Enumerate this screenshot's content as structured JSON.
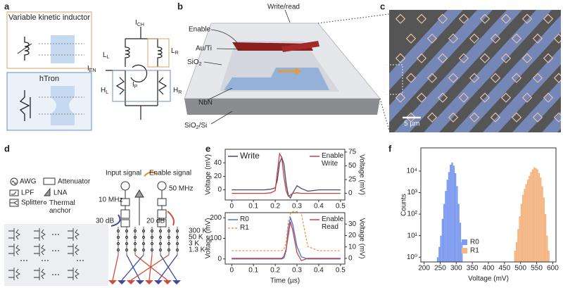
{
  "panel_labels": [
    "a",
    "b",
    "c",
    "d",
    "e",
    "f"
  ],
  "panel_a": {
    "boxes": [
      "Variable kinetic inductor",
      "hTron"
    ],
    "labels": [
      {
        "main": "I",
        "sub": "CH"
      },
      {
        "main": "L",
        "sub": "L"
      },
      {
        "main": "L",
        "sub": "R"
      },
      {
        "main": "I",
        "sub": "EN"
      },
      {
        "main": "I",
        "sub": "P"
      },
      {
        "main": "H",
        "sub": "L"
      },
      {
        "main": "H",
        "sub": "R"
      }
    ]
  },
  "panel_b": {
    "labels": [
      "Write/read",
      "Enable",
      "Au/Ti",
      {
        "main": "SiO",
        "sub": "2"
      },
      "NbN",
      {
        "main": "SiO",
        "sub": "2",
        "tail": "/Si"
      }
    ]
  },
  "panel_c": {
    "scale_bar": "5 µm"
  },
  "panel_d": {
    "legend": [
      "AWG",
      "Attenuator",
      "LPF",
      "LNA",
      "Splitter",
      "Thermal anchor"
    ],
    "signals": [
      "Input signal",
      "Enable signal"
    ],
    "frequencies": [
      "10 MHz",
      "50 MHz"
    ],
    "attenuation": [
      "30 dB",
      "20 dB"
    ],
    "stages": [
      "300 K",
      "50 K",
      "3 K",
      "1.3 K"
    ]
  },
  "chart_data": [
    {
      "type": "line",
      "x": [
        0,
        0.05,
        0.1,
        0.15,
        0.18,
        0.2,
        0.21,
        0.22,
        0.23,
        0.24,
        0.25,
        0.26,
        0.27,
        0.28,
        0.3,
        0.32,
        0.35,
        0.4,
        0.45,
        0.5
      ],
      "xlim": [
        -0.03,
        0.52
      ],
      "xticks": [
        0,
        0.1,
        0.2,
        0.3,
        0.4,
        0.5
      ],
      "ylabel": "Voltage (mV)",
      "ylim": [
        -15,
        60
      ],
      "yticks": [
        0,
        20,
        40
      ],
      "y2label": "Voltage (mV)",
      "y2lim": [
        -12,
        80
      ],
      "y2ticks": [
        0,
        25,
        50,
        75
      ],
      "series": [
        {
          "name": "Write",
          "color": "#454a6e",
          "values": [
            0,
            0,
            0,
            0,
            1,
            3,
            15,
            40,
            48,
            38,
            10,
            -8,
            -12,
            -5,
            6,
            2,
            -2,
            0,
            0,
            0
          ]
        },
        {
          "name": "Enable Write",
          "color": "#c8413a",
          "axis": "y2",
          "values": [
            0,
            0,
            0,
            0,
            1,
            5,
            40,
            72,
            65,
            30,
            5,
            -5,
            -3,
            0,
            1,
            0,
            0,
            0,
            0,
            0
          ]
        }
      ]
    },
    {
      "type": "line",
      "x": [
        0,
        0.05,
        0.1,
        0.15,
        0.18,
        0.2,
        0.21,
        0.22,
        0.23,
        0.24,
        0.25,
        0.26,
        0.27,
        0.28,
        0.3,
        0.32,
        0.35,
        0.4,
        0.45,
        0.5
      ],
      "xlabel": "Time (µs)",
      "xlim": [
        -0.03,
        0.52
      ],
      "xticks": [
        0,
        0.1,
        0.2,
        0.3,
        0.4,
        0.5
      ],
      "ylabel": "Voltage (mV)",
      "ylim": [
        -25,
        225
      ],
      "yticks": [
        0,
        100,
        200
      ],
      "y2label": "Voltage (mV)",
      "y2lim": [
        -5,
        40
      ],
      "y2ticks": [
        0,
        10,
        20,
        30
      ],
      "series": [
        {
          "name": "R0",
          "color": "#4a6fd8",
          "values": [
            0,
            0,
            0,
            0,
            0,
            0,
            0,
            0,
            0,
            5,
            40,
            150,
            200,
            170,
            60,
            10,
            0,
            0,
            0,
            0
          ]
        },
        {
          "name": "R1",
          "color": "#e89a50",
          "line_style": "dashed",
          "values": [
            40,
            40,
            40,
            40,
            40,
            40,
            40,
            40,
            40,
            45,
            80,
            180,
            220,
            230,
            230,
            220,
            60,
            40,
            40,
            40
          ]
        },
        {
          "name": "Enable Read",
          "color": "#c8413a",
          "axis": "y2",
          "values": [
            0,
            0,
            0,
            0,
            0,
            0,
            0,
            0,
            0,
            2,
            8,
            20,
            32,
            25,
            5,
            -2,
            0,
            0,
            0,
            0
          ]
        }
      ]
    },
    {
      "type": "histogram",
      "xlabel": "Voltage (mV)",
      "ylabel": "Counts",
      "log_y": true,
      "xlim": [
        190,
        610
      ],
      "xticks": [
        200,
        250,
        300,
        350,
        400,
        450,
        500,
        550,
        600
      ],
      "ylim": [
        0.6,
        120000
      ],
      "yticks": [
        {
          "value": 1,
          "label": "10⁰"
        },
        {
          "value": 10,
          "label": "10¹"
        },
        {
          "value": 100,
          "label": "10²"
        },
        {
          "value": 1000,
          "label": "10³"
        },
        {
          "value": 10000,
          "label": "10⁴"
        }
      ],
      "series": [
        {
          "name": "R0",
          "color": "#7f9cf0",
          "bins": [
            240,
            245,
            250,
            255,
            260,
            265,
            270,
            275,
            280,
            285,
            290,
            295,
            300,
            305,
            310,
            315,
            320
          ],
          "values": [
            1,
            3,
            10,
            60,
            300,
            1200,
            4000,
            9000,
            20000,
            25000,
            18000,
            8000,
            2000,
            300,
            40,
            5
          ]
        },
        {
          "name": "R1",
          "color": "#f4b684",
          "bins": [
            480,
            485,
            490,
            495,
            500,
            505,
            510,
            515,
            520,
            525,
            530,
            535,
            540,
            545,
            550,
            555,
            560,
            565,
            570,
            575,
            580,
            585,
            590
          ],
          "values": [
            2,
            5,
            20,
            80,
            300,
            800,
            1500,
            2500,
            4000,
            6000,
            9000,
            12000,
            15000,
            14000,
            12000,
            8000,
            5000,
            2000,
            600,
            100,
            10,
            2
          ]
        }
      ]
    }
  ]
}
